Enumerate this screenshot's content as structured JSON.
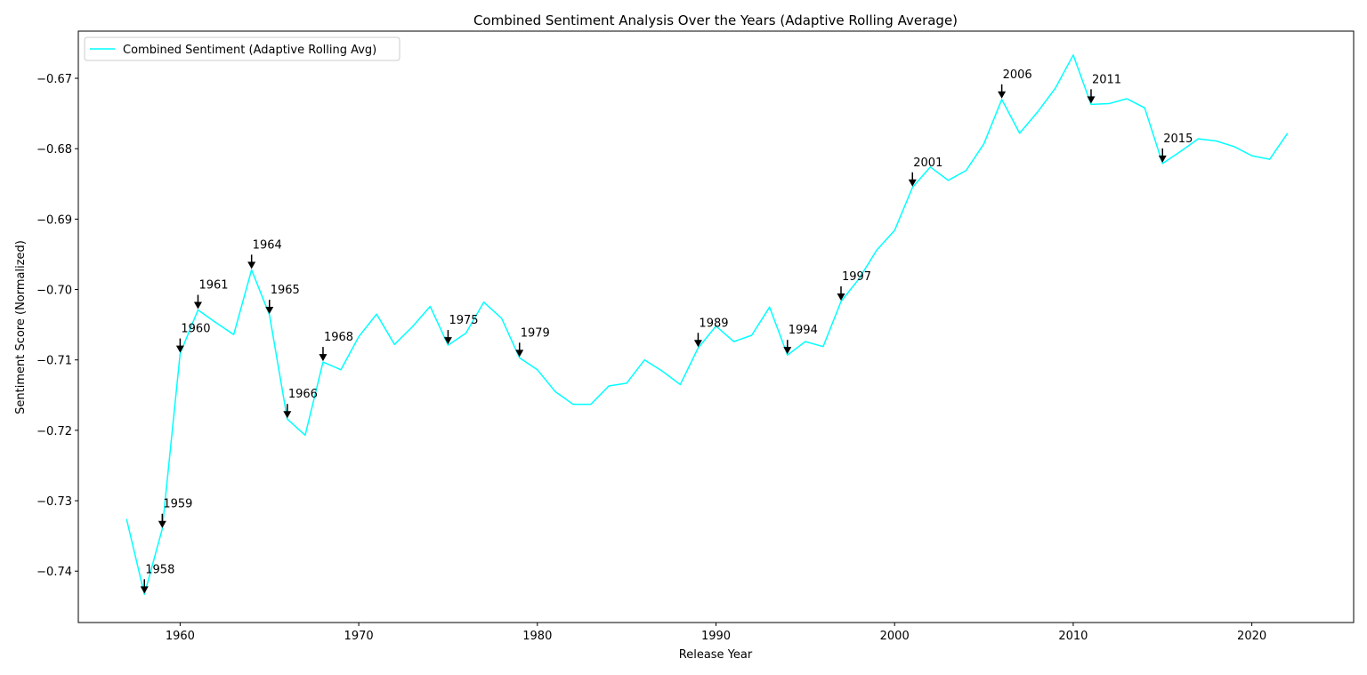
{
  "chart_data": {
    "type": "line",
    "title": "Combined Sentiment Analysis Over the Years (Adaptive Rolling Average)",
    "xlabel": "Release Year",
    "ylabel": "Sentiment Score (Normalized)",
    "xlim": [
      1954.3,
      2025.7
    ],
    "ylim": [
      -0.7473,
      -0.6633
    ],
    "xticks": [
      1960,
      1970,
      1980,
      1990,
      2000,
      2010,
      2020
    ],
    "yticks": [
      -0.74,
      -0.73,
      -0.72,
      -0.71,
      -0.7,
      -0.69,
      -0.68,
      -0.67
    ],
    "ytick_labels": [
      "−0.74",
      "−0.73",
      "−0.72",
      "−0.71",
      "−0.70",
      "−0.69",
      "−0.68",
      "−0.67"
    ],
    "grid": false,
    "legend_position": "upper-left",
    "colors": {
      "line": "#00ffff",
      "arrow": "#000000"
    },
    "series": [
      {
        "name": "Combined Sentiment (Adaptive Rolling Avg)",
        "x": [
          1957,
          1958,
          1959,
          1960,
          1961,
          1962,
          1963,
          1964,
          1965,
          1966,
          1967,
          1968,
          1969,
          1970,
          1971,
          1972,
          1973,
          1974,
          1975,
          1976,
          1977,
          1978,
          1979,
          1980,
          1981,
          1982,
          1983,
          1984,
          1985,
          1986,
          1987,
          1988,
          1989,
          1990,
          1991,
          1992,
          1993,
          1994,
          1995,
          1996,
          1997,
          1998,
          1999,
          2000,
          2001,
          2002,
          2003,
          2004,
          2005,
          2006,
          2007,
          2008,
          2009,
          2010,
          2011,
          2012,
          2013,
          2014,
          2015,
          2016,
          2017,
          2018,
          2019,
          2020,
          2021,
          2022
        ],
        "values": [
          -0.7326,
          -0.7433,
          -0.734,
          -0.7091,
          -0.7029,
          -0.7047,
          -0.7064,
          -0.6972,
          -0.7036,
          -0.7184,
          -0.7207,
          -0.7103,
          -0.7114,
          -0.7067,
          -0.7035,
          -0.7078,
          -0.7053,
          -0.7024,
          -0.7079,
          -0.7062,
          -0.7018,
          -0.7041,
          -0.7097,
          -0.7114,
          -0.7145,
          -0.7163,
          -0.7163,
          -0.7137,
          -0.7133,
          -0.71,
          -0.7116,
          -0.7135,
          -0.7083,
          -0.7052,
          -0.7074,
          -0.7065,
          -0.7025,
          -0.7093,
          -0.7074,
          -0.7081,
          -0.7017,
          -0.6985,
          -0.6944,
          -0.6916,
          -0.6855,
          -0.6826,
          -0.6845,
          -0.6831,
          -0.6793,
          -0.673,
          -0.6778,
          -0.6748,
          -0.6714,
          -0.6667,
          -0.6737,
          -0.6736,
          -0.6729,
          -0.6742,
          -0.6821,
          -0.6804,
          -0.6786,
          -0.6789,
          -0.6797,
          -0.681,
          -0.6815,
          -0.6778
        ]
      }
    ],
    "annotations": [
      {
        "label": "1958",
        "x": 1958,
        "y": -0.7433
      },
      {
        "label": "1959",
        "x": 1959,
        "y": -0.734
      },
      {
        "label": "1960",
        "x": 1960,
        "y": -0.7091
      },
      {
        "label": "1961",
        "x": 1961,
        "y": -0.7029
      },
      {
        "label": "1964",
        "x": 1964,
        "y": -0.6972
      },
      {
        "label": "1965",
        "x": 1965,
        "y": -0.7036
      },
      {
        "label": "1966",
        "x": 1966,
        "y": -0.7184
      },
      {
        "label": "1968",
        "x": 1968,
        "y": -0.7103
      },
      {
        "label": "1975",
        "x": 1975,
        "y": -0.7079
      },
      {
        "label": "1979",
        "x": 1979,
        "y": -0.7097
      },
      {
        "label": "1989",
        "x": 1989,
        "y": -0.7083
      },
      {
        "label": "1994",
        "x": 1994,
        "y": -0.7093
      },
      {
        "label": "1997",
        "x": 1997,
        "y": -0.7017
      },
      {
        "label": "2001",
        "x": 2001,
        "y": -0.6855
      },
      {
        "label": "2006",
        "x": 2006,
        "y": -0.673
      },
      {
        "label": "2011",
        "x": 2011,
        "y": -0.6737
      },
      {
        "label": "2015",
        "x": 2015,
        "y": -0.6821
      }
    ]
  }
}
